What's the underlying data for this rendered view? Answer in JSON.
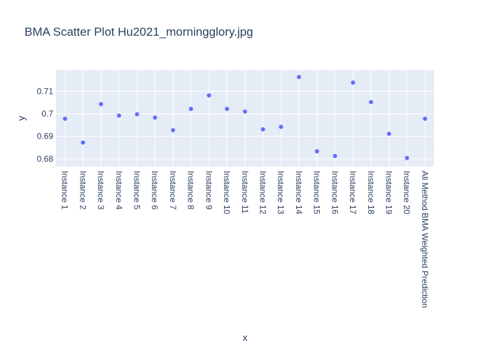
{
  "chart_data": {
    "type": "scatter",
    "title": "BMA Scatter Plot Hu2021_morningglory.jpg",
    "xlabel": "x",
    "ylabel": "y",
    "categories": [
      "Instance 1",
      "Instance 2",
      "Instance 3",
      "Instance 4",
      "Instance 5",
      "Instance 6",
      "Instance 7",
      "Instance 8",
      "Instance 9",
      "Instance 10",
      "Instance 11",
      "Instance 12",
      "Instance 13",
      "Instance 14",
      "Instance 15",
      "Instance 16",
      "Instance 17",
      "Instance 18",
      "Instance 19",
      "Instance 20",
      "All Method BMA Weighted Prediction"
    ],
    "values": [
      0.6978,
      0.6872,
      0.7043,
      0.6992,
      0.6998,
      0.6983,
      0.6927,
      0.7022,
      0.7082,
      0.7022,
      0.701,
      0.6931,
      0.6942,
      0.7164,
      0.6833,
      0.6812,
      0.7139,
      0.7052,
      0.6911,
      0.6803,
      0.6978
    ],
    "ylim": [
      0.6765,
      0.7195
    ],
    "yticks": [
      0.68,
      0.69,
      0.7,
      0.71
    ],
    "ytick_labels": [
      "0.68",
      "0.69",
      "0.7",
      "0.71"
    ],
    "grid": true,
    "colors": {
      "marker": "#636efa",
      "plot_bg": "#e5ecf6",
      "grid": "#ffffff",
      "text": "#2a3f5f"
    }
  }
}
